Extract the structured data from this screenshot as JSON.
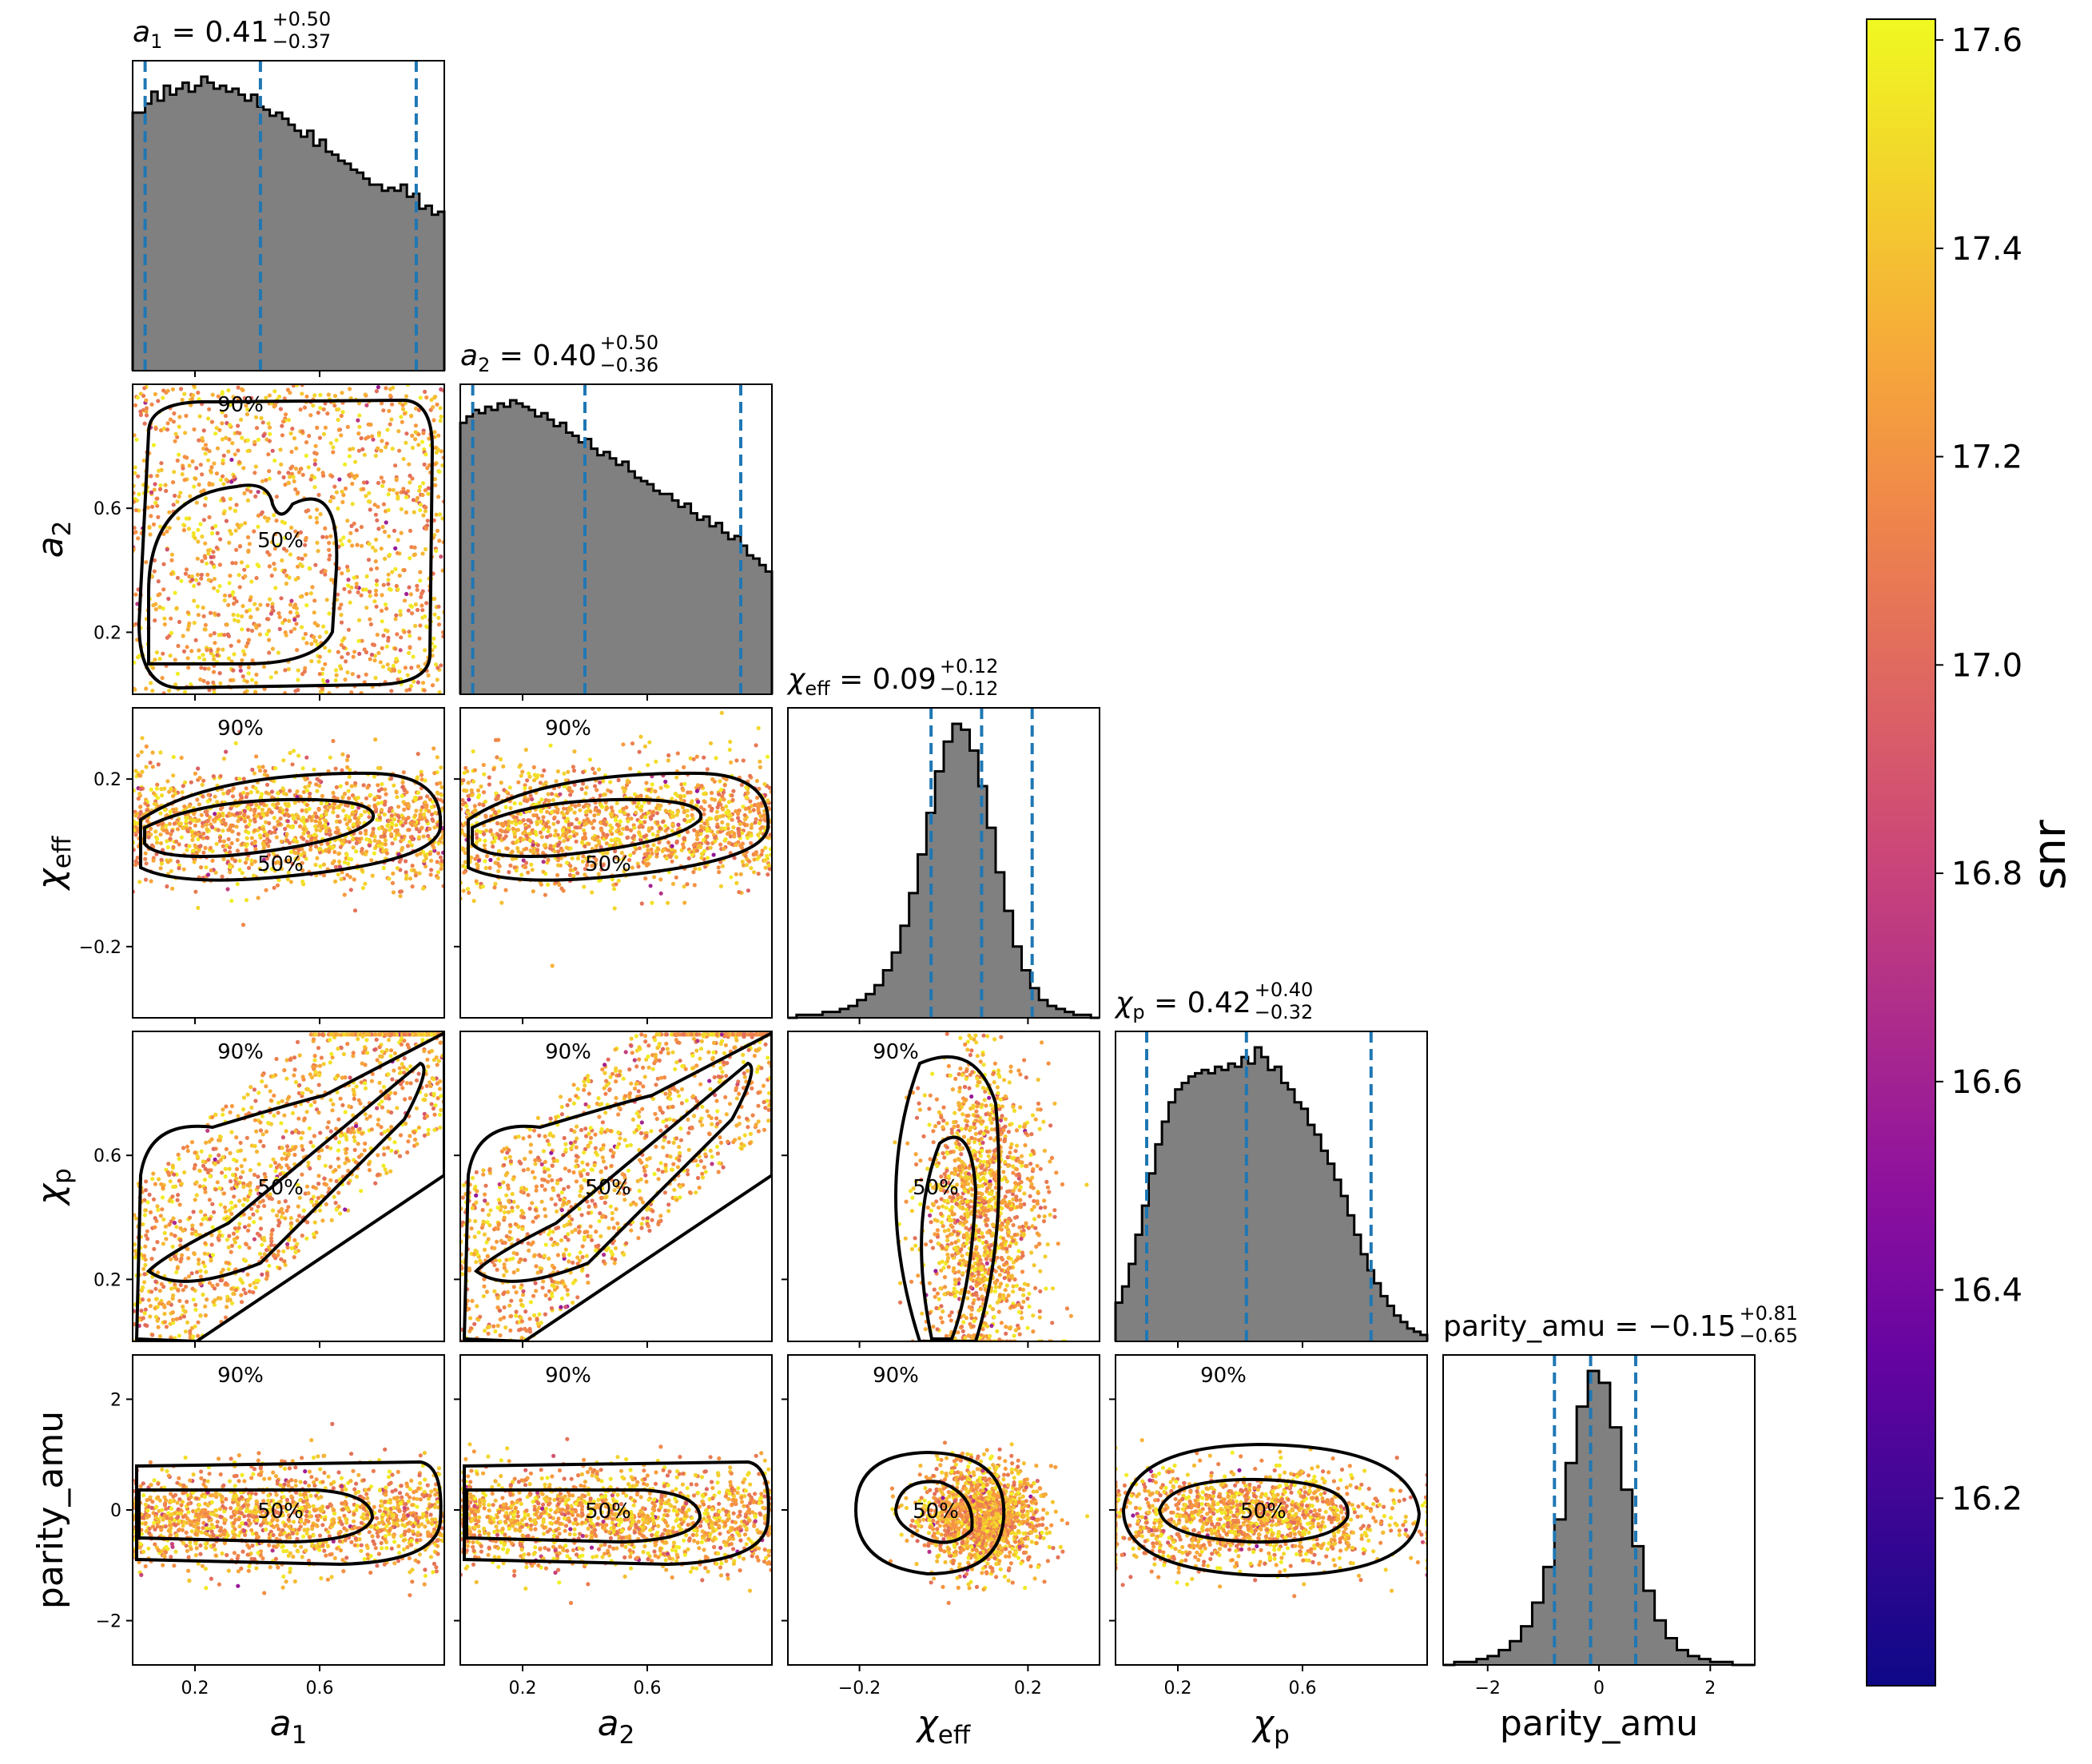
{
  "chart_data": {
    "type": "corner",
    "parameters": [
      {
        "key": "a1",
        "tick_labels": [
          "0.2",
          "0.6"
        ],
        "ticks": [
          0.2,
          0.6
        ],
        "range": [
          0.0,
          1.0
        ]
      },
      {
        "key": "a2",
        "tick_labels": [
          "0.2",
          "0.6"
        ],
        "ticks": [
          0.2,
          0.6
        ],
        "range": [
          0.0,
          1.0
        ]
      },
      {
        "key": "chi_eff",
        "tick_labels": [
          "−0.2",
          "0.2"
        ],
        "ticks": [
          -0.2,
          0.2
        ],
        "range": [
          -0.37,
          0.37
        ]
      },
      {
        "key": "chi_p",
        "tick_labels": [
          "0.2",
          "0.6"
        ],
        "ticks": [
          0.2,
          0.6
        ],
        "range": [
          0.0,
          1.0
        ]
      },
      {
        "key": "parity_amu",
        "tick_labels": [
          "−2",
          "0",
          "2"
        ],
        "ticks": [
          -2,
          0,
          2
        ],
        "range": [
          -2.8,
          2.8
        ]
      }
    ],
    "titles": {
      "a1": {
        "symbol": "a",
        "sub": "1",
        "median": "0.41",
        "plus": "+0.50",
        "minus": "−0.37"
      },
      "a2": {
        "symbol": "a",
        "sub": "2",
        "median": "0.40",
        "plus": "+0.50",
        "minus": "−0.36"
      },
      "chi_eff": {
        "symbol": "χ",
        "sub": "eff",
        "median": "0.09",
        "plus": "+0.12",
        "minus": "−0.12"
      },
      "chi_p": {
        "symbol": "χ",
        "sub": "p",
        "median": "0.42",
        "plus": "+0.40",
        "minus": "−0.32"
      },
      "parity_amu": {
        "text": "parity_amu = −0.15",
        "plus": "+0.81",
        "minus": "−0.65"
      }
    },
    "axis_labels": {
      "a1": {
        "symbol": "a",
        "sub": "1"
      },
      "a2": {
        "symbol": "a",
        "sub": "2"
      },
      "chi_eff": {
        "symbol": "χ",
        "sub": "eff"
      },
      "chi_p": {
        "symbol": "χ",
        "sub": "p"
      },
      "parity_amu": {
        "text": "parity_amu"
      }
    },
    "quantiles": {
      "a1": [
        0.04,
        0.41,
        0.91
      ],
      "a2": [
        0.04,
        0.4,
        0.9
      ],
      "chi_eff": [
        -0.03,
        0.09,
        0.21
      ],
      "chi_p": [
        0.1,
        0.42,
        0.82
      ],
      "parity_amu": [
        -0.8,
        -0.15,
        0.66
      ]
    },
    "histograms": {
      "a1": [
        0.86,
        0.86,
        0.89,
        0.93,
        0.9,
        0.95,
        0.92,
        0.94,
        0.96,
        0.93,
        0.95,
        0.98,
        0.96,
        0.94,
        0.95,
        0.93,
        0.94,
        0.92,
        0.9,
        0.92,
        0.88,
        0.87,
        0.85,
        0.86,
        0.84,
        0.82,
        0.8,
        0.78,
        0.8,
        0.75,
        0.77,
        0.73,
        0.72,
        0.7,
        0.69,
        0.67,
        0.66,
        0.64,
        0.62,
        0.62,
        0.6,
        0.61,
        0.6,
        0.62,
        0.58,
        0.59,
        0.54,
        0.55,
        0.52,
        0.53
      ],
      "a2": [
        0.84,
        0.86,
        0.88,
        0.87,
        0.89,
        0.88,
        0.9,
        0.89,
        0.91,
        0.9,
        0.89,
        0.88,
        0.86,
        0.87,
        0.85,
        0.83,
        0.84,
        0.81,
        0.8,
        0.78,
        0.79,
        0.76,
        0.74,
        0.75,
        0.73,
        0.71,
        0.72,
        0.69,
        0.67,
        0.66,
        0.65,
        0.63,
        0.62,
        0.62,
        0.6,
        0.58,
        0.59,
        0.56,
        0.54,
        0.55,
        0.52,
        0.53,
        0.5,
        0.48,
        0.49,
        0.46,
        0.43,
        0.42,
        0.4,
        0.38
      ],
      "chi_eff": [
        0.0,
        0.01,
        0.01,
        0.01,
        0.02,
        0.02,
        0.03,
        0.04,
        0.06,
        0.08,
        0.11,
        0.16,
        0.22,
        0.31,
        0.42,
        0.55,
        0.69,
        0.83,
        0.93,
        0.99,
        0.97,
        0.9,
        0.78,
        0.64,
        0.49,
        0.36,
        0.24,
        0.16,
        0.1,
        0.06,
        0.04,
        0.03,
        0.02,
        0.01,
        0.01,
        0.0
      ],
      "chi_p": [
        0.12,
        0.17,
        0.24,
        0.33,
        0.42,
        0.52,
        0.61,
        0.68,
        0.74,
        0.78,
        0.8,
        0.82,
        0.83,
        0.84,
        0.83,
        0.85,
        0.84,
        0.86,
        0.85,
        0.88,
        0.86,
        0.91,
        0.88,
        0.84,
        0.85,
        0.8,
        0.78,
        0.74,
        0.72,
        0.67,
        0.64,
        0.59,
        0.55,
        0.5,
        0.45,
        0.39,
        0.33,
        0.27,
        0.22,
        0.18,
        0.14,
        0.11,
        0.08,
        0.06,
        0.04,
        0.03,
        0.02
      ],
      "parity_amu": [
        0.0,
        0.01,
        0.01,
        0.02,
        0.03,
        0.05,
        0.08,
        0.13,
        0.21,
        0.33,
        0.49,
        0.68,
        0.87,
        0.99,
        0.95,
        0.8,
        0.59,
        0.4,
        0.25,
        0.15,
        0.09,
        0.05,
        0.03,
        0.02,
        0.01,
        0.01,
        0.0,
        0.0
      ]
    },
    "contour_labels": [
      "50%",
      "90%"
    ],
    "colorbar": {
      "label": "snr",
      "range": [
        16.02,
        17.62
      ],
      "ticks": [
        16.2,
        16.4,
        16.6,
        16.8,
        17.0,
        17.2,
        17.4,
        17.6
      ],
      "tick_labels": [
        "16.2",
        "16.4",
        "16.6",
        "16.8",
        "17.0",
        "17.2",
        "17.4",
        "17.6"
      ],
      "colormap": "plasma"
    },
    "colors": {
      "histogram_fill": "#808080",
      "histogram_edge": "#000000",
      "quantile_line": "#1f77b4",
      "contour": "#000000"
    }
  }
}
